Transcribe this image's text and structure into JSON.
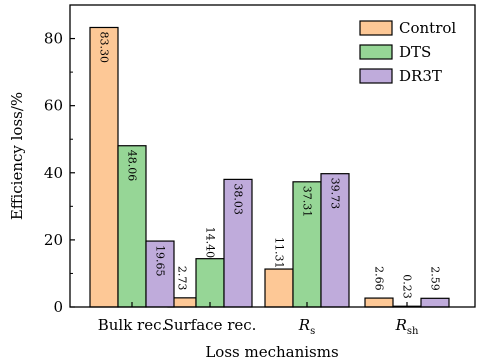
{
  "chart_data": {
    "type": "bar",
    "xlabel": "Loss mechanisms",
    "ylabel": "Efficiency loss/%",
    "ylim": [
      0,
      90
    ],
    "yticks": [
      0,
      20,
      40,
      60,
      80
    ],
    "grid": false,
    "legend_position": "top-right",
    "categories": [
      {
        "main": "Bulk rec.",
        "sub": ""
      },
      {
        "main": "Surface rec.",
        "sub": ""
      },
      {
        "main": "R",
        "sub": "s"
      },
      {
        "main": "R",
        "sub": "sh"
      }
    ],
    "series": [
      {
        "name": "Control",
        "color": "#fdc896",
        "values": [
          83.3,
          2.73,
          11.31,
          2.66
        ],
        "labels": [
          "83.30",
          "2.73",
          "11.31",
          "2.66"
        ]
      },
      {
        "name": "DTS",
        "color": "#96d696",
        "values": [
          48.06,
          14.4,
          37.31,
          0.23
        ],
        "labels": [
          "48.06",
          "14.40",
          "37.31",
          "0.23"
        ]
      },
      {
        "name": "DR3T",
        "color": "#bfabdb",
        "values": [
          19.65,
          38.03,
          39.73,
          2.59
        ],
        "labels": [
          "19.65",
          "38.03",
          "39.73",
          "2.59"
        ]
      }
    ]
  }
}
